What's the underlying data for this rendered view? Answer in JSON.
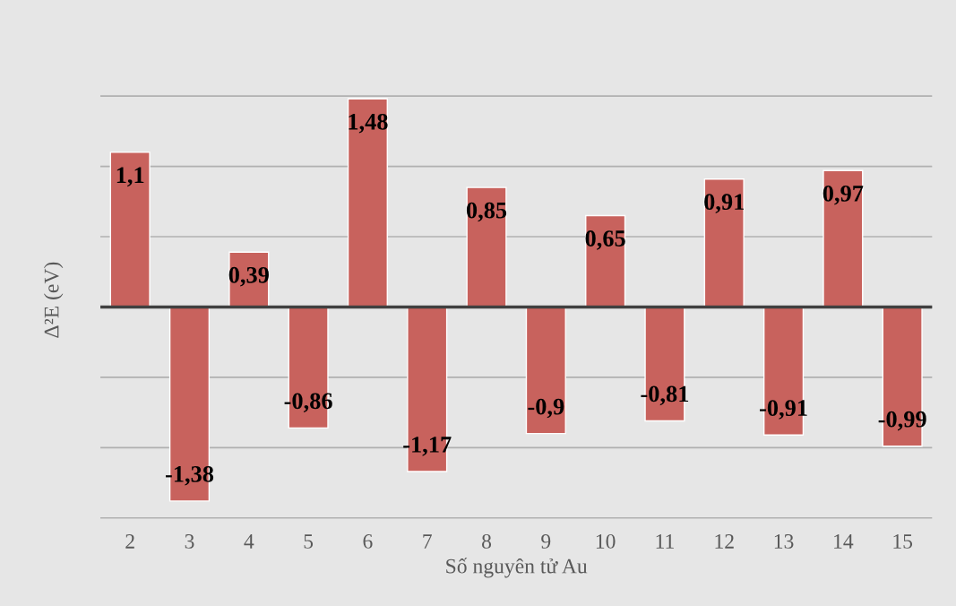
{
  "chart_data": {
    "type": "bar",
    "xlabel": "Số nguyên tử Au",
    "ylabel": "Δ²E (eV)",
    "categories": [
      "2",
      "3",
      "4",
      "5",
      "6",
      "7",
      "8",
      "9",
      "10",
      "11",
      "12",
      "13",
      "14",
      "15"
    ],
    "values": [
      1.1,
      -1.38,
      0.39,
      -0.86,
      1.48,
      -1.17,
      0.85,
      -0.9,
      0.65,
      -0.81,
      0.91,
      -0.91,
      0.97,
      -0.99
    ],
    "value_labels": [
      "1,1",
      "-1,38",
      "0,39",
      "-0,86",
      "1,48",
      "-1,17",
      "0,85",
      "-0,9",
      "0,65",
      "-0,81",
      "0,91",
      "-0,91",
      "0,97",
      "-0,99"
    ],
    "color": "#c8625d",
    "tick_labels": "x",
    "grid": "y"
  }
}
